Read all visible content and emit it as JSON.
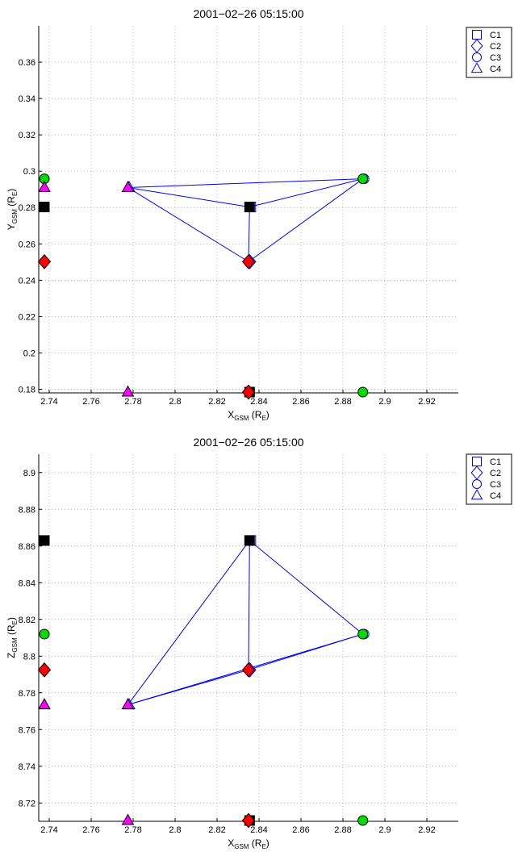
{
  "chart_data": [
    {
      "type": "scatter",
      "title": "2001−02−26 05:15:00",
      "xlabel": {
        "main": "X",
        "sub": "GSM",
        "unit_open": " (R",
        "unit_sub": "E",
        "unit_close": ")"
      },
      "ylabel": {
        "main": "Y",
        "sub": "GSM",
        "unit_open": " (R",
        "unit_sub": "E",
        "unit_close": ")"
      },
      "xlim": [
        2.735,
        2.935
      ],
      "ylim": [
        0.178,
        0.38
      ],
      "xticks": [
        2.74,
        2.76,
        2.78,
        2.8,
        2.82,
        2.84,
        2.86,
        2.88,
        2.9,
        2.92
      ],
      "xtick_labels": [
        "2.74",
        "2.76",
        "2.78",
        "2.8",
        "2.82",
        "2.84",
        "2.86",
        "2.88",
        "2.9",
        "2.92"
      ],
      "yticks": [
        0.18,
        0.2,
        0.22,
        0.24,
        0.26,
        0.28,
        0.3,
        0.32,
        0.34,
        0.36
      ],
      "ytick_labels": [
        "0.18",
        "0.2",
        "0.22",
        "0.24",
        "0.26",
        "0.28",
        "0.3",
        "0.32",
        "0.34",
        "0.36"
      ],
      "grid": true,
      "legend_position": "outside-top-right",
      "series": [
        {
          "name": "C1",
          "marker": "square",
          "x": 2.8355,
          "y": 0.2803,
          "color": "#000000"
        },
        {
          "name": "C2",
          "marker": "diamond",
          "x": 2.835,
          "y": 0.2502,
          "color": "#ff0000"
        },
        {
          "name": "C3",
          "marker": "circle",
          "x": 2.8895,
          "y": 0.2958,
          "color": "#00dd00"
        },
        {
          "name": "C4",
          "marker": "triangle",
          "x": 2.7775,
          "y": 0.291,
          "color": "#ff00ff"
        }
      ],
      "line_color": "#0000ff"
    },
    {
      "type": "scatter",
      "title": "2001−02−26 05:15:00",
      "xlabel": {
        "main": "X",
        "sub": "GSM",
        "unit_open": " (R",
        "unit_sub": "E",
        "unit_close": ")"
      },
      "ylabel": {
        "main": "Z",
        "sub": "GSM",
        "unit_open": " (R",
        "unit_sub": "E",
        "unit_close": ")"
      },
      "xlim": [
        2.735,
        2.935
      ],
      "ylim": [
        8.71,
        8.91
      ],
      "xticks": [
        2.74,
        2.76,
        2.78,
        2.8,
        2.82,
        2.84,
        2.86,
        2.88,
        2.9,
        2.92
      ],
      "xtick_labels": [
        "2.74",
        "2.76",
        "2.78",
        "2.8",
        "2.82",
        "2.84",
        "2.86",
        "2.88",
        "2.9",
        "2.92"
      ],
      "yticks": [
        8.72,
        8.74,
        8.76,
        8.78,
        8.8,
        8.82,
        8.84,
        8.86,
        8.88,
        8.9
      ],
      "ytick_labels": [
        "8.72",
        "8.74",
        "8.76",
        "8.78",
        "8.8",
        "8.82",
        "8.84",
        "8.86",
        "8.88",
        "8.9"
      ],
      "grid": true,
      "legend_position": "outside-top-right",
      "series": [
        {
          "name": "C1",
          "marker": "square",
          "x": 2.8355,
          "y": 8.863,
          "color": "#000000"
        },
        {
          "name": "C2",
          "marker": "diamond",
          "x": 2.835,
          "y": 8.7925,
          "color": "#ff0000"
        },
        {
          "name": "C3",
          "marker": "circle",
          "x": 2.8895,
          "y": 8.812,
          "color": "#00dd00"
        },
        {
          "name": "C4",
          "marker": "triangle",
          "x": 2.7775,
          "y": 8.7735,
          "color": "#ff00ff"
        }
      ],
      "line_color": "#0000ff"
    }
  ]
}
